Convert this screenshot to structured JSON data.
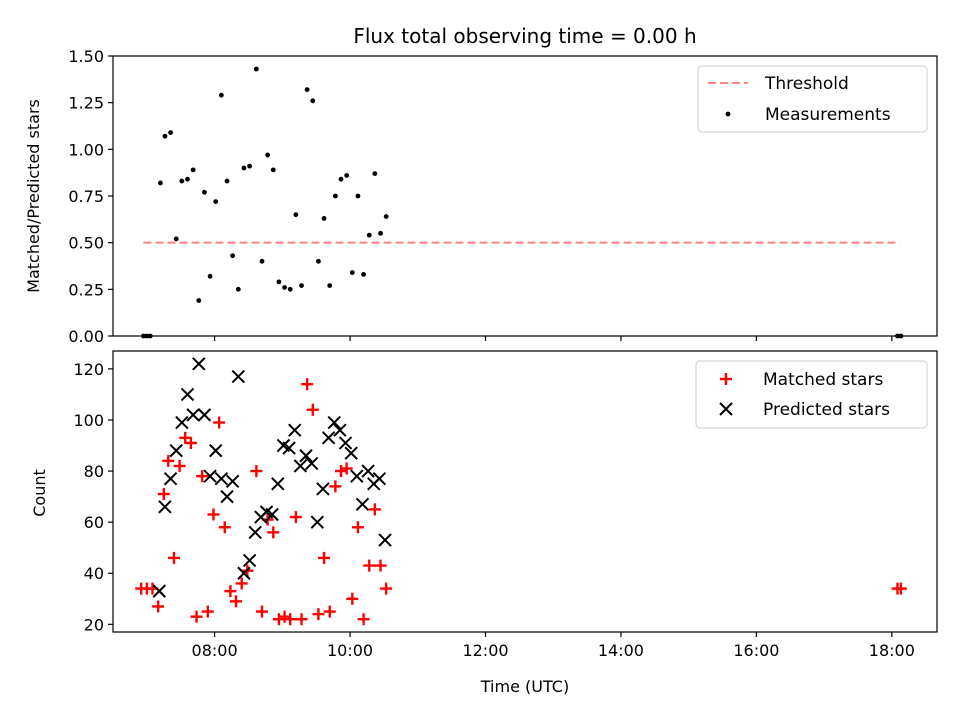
{
  "chart_data": [
    {
      "type": "scatter",
      "title": "Flux total observing time = 0.00 h",
      "xlabel": "",
      "ylabel": "Matched/Predicted stars",
      "xlim": [
        "06:30",
        "18:40"
      ],
      "ylim": [
        0,
        1.5
      ],
      "yticks": [
        "0.00",
        "0.25",
        "0.50",
        "0.75",
        "1.00",
        "1.25",
        "1.50"
      ],
      "grid": false,
      "legend_position": "top-right",
      "threshold": {
        "name": "Threshold",
        "y": 0.5,
        "x_start": "06:57",
        "x_end": "18:07",
        "color": "#ff8080"
      },
      "series": [
        {
          "name": "Measurements",
          "color": "#000000",
          "marker": "dot",
          "points": [
            [
              "06:57",
              0.0
            ],
            [
              "07:00",
              0.0
            ],
            [
              "07:03",
              0.0
            ],
            [
              "07:12",
              0.82
            ],
            [
              "07:16",
              1.07
            ],
            [
              "07:21",
              1.09
            ],
            [
              "07:26",
              0.52
            ],
            [
              "07:31",
              0.83
            ],
            [
              "07:36",
              0.84
            ],
            [
              "07:41",
              0.89
            ],
            [
              "07:46",
              0.19
            ],
            [
              "07:51",
              0.77
            ],
            [
              "07:56",
              0.32
            ],
            [
              "08:01",
              0.72
            ],
            [
              "08:06",
              1.29
            ],
            [
              "08:11",
              0.83
            ],
            [
              "08:16",
              0.43
            ],
            [
              "08:21",
              0.25
            ],
            [
              "08:26",
              0.9
            ],
            [
              "08:31",
              0.91
            ],
            [
              "08:37",
              1.43
            ],
            [
              "08:42",
              0.4
            ],
            [
              "08:47",
              0.97
            ],
            [
              "08:52",
              0.89
            ],
            [
              "08:57",
              0.29
            ],
            [
              "09:02",
              0.26
            ],
            [
              "09:07",
              0.25
            ],
            [
              "09:12",
              0.65
            ],
            [
              "09:17",
              0.27
            ],
            [
              "09:22",
              1.32
            ],
            [
              "09:27",
              1.26
            ],
            [
              "09:32",
              0.4
            ],
            [
              "09:37",
              0.63
            ],
            [
              "09:42",
              0.27
            ],
            [
              "09:47",
              0.75
            ],
            [
              "09:52",
              0.84
            ],
            [
              "09:57",
              0.86
            ],
            [
              "10:02",
              0.34
            ],
            [
              "10:07",
              0.75
            ],
            [
              "10:12",
              0.33
            ],
            [
              "10:17",
              0.54
            ],
            [
              "10:22",
              0.87
            ],
            [
              "10:27",
              0.55
            ],
            [
              "10:32",
              0.64
            ],
            [
              "18:05",
              0.0
            ],
            [
              "18:08",
              0.0
            ]
          ]
        }
      ]
    },
    {
      "type": "scatter",
      "title": "",
      "xlabel": "Time (UTC)",
      "ylabel": "Count",
      "xlim": [
        "06:30",
        "18:40"
      ],
      "ylim": [
        17,
        127
      ],
      "yticks": [
        "20",
        "40",
        "60",
        "80",
        "100",
        "120"
      ],
      "xticks": [
        "08:00",
        "10:00",
        "12:00",
        "14:00",
        "16:00",
        "18:00"
      ],
      "grid": false,
      "legend_position": "top-right",
      "series": [
        {
          "name": "Matched stars",
          "color": "#ff0000",
          "marker": "plus",
          "points": [
            [
              "06:55",
              34
            ],
            [
              "07:00",
              34
            ],
            [
              "07:05",
              34
            ],
            [
              "07:10",
              27
            ],
            [
              "07:15",
              71
            ],
            [
              "07:19",
              84
            ],
            [
              "07:24",
              46
            ],
            [
              "07:29",
              82
            ],
            [
              "07:34",
              93
            ],
            [
              "07:39",
              91
            ],
            [
              "07:44",
              23
            ],
            [
              "07:49",
              78
            ],
            [
              "07:54",
              25
            ],
            [
              "07:59",
              63
            ],
            [
              "08:04",
              99
            ],
            [
              "08:09",
              58
            ],
            [
              "08:14",
              33
            ],
            [
              "08:19",
              29
            ],
            [
              "08:24",
              36
            ],
            [
              "08:29",
              41
            ],
            [
              "08:37",
              80
            ],
            [
              "08:42",
              25
            ],
            [
              "08:47",
              61
            ],
            [
              "08:52",
              56
            ],
            [
              "08:57",
              22
            ],
            [
              "09:02",
              23
            ],
            [
              "09:07",
              22
            ],
            [
              "09:12",
              62
            ],
            [
              "09:17",
              22
            ],
            [
              "09:22",
              114
            ],
            [
              "09:27",
              104
            ],
            [
              "09:32",
              24
            ],
            [
              "09:37",
              46
            ],
            [
              "09:42",
              25
            ],
            [
              "09:47",
              74
            ],
            [
              "09:52",
              80
            ],
            [
              "09:57",
              81
            ],
            [
              "10:02",
              30
            ],
            [
              "10:07",
              58
            ],
            [
              "10:12",
              22
            ],
            [
              "10:17",
              43
            ],
            [
              "10:22",
              65
            ],
            [
              "10:27",
              43
            ],
            [
              "10:32",
              34
            ],
            [
              "18:05",
              34
            ],
            [
              "18:08",
              34
            ]
          ]
        },
        {
          "name": "Predicted stars",
          "color": "#000000",
          "marker": "x",
          "points": [
            [
              "07:11",
              33
            ],
            [
              "07:16",
              66
            ],
            [
              "07:21",
              77
            ],
            [
              "07:26",
              88
            ],
            [
              "07:31",
              99
            ],
            [
              "07:36",
              110
            ],
            [
              "07:41",
              102
            ],
            [
              "07:46",
              122
            ],
            [
              "07:51",
              102
            ],
            [
              "07:56",
              78
            ],
            [
              "08:01",
              88
            ],
            [
              "08:06",
              77
            ],
            [
              "08:11",
              70
            ],
            [
              "08:16",
              76
            ],
            [
              "08:21",
              117
            ],
            [
              "08:26",
              40
            ],
            [
              "08:31",
              45
            ],
            [
              "08:36",
              56
            ],
            [
              "08:41",
              62
            ],
            [
              "08:46",
              64
            ],
            [
              "08:51",
              63
            ],
            [
              "08:56",
              75
            ],
            [
              "09:01",
              90
            ],
            [
              "09:06",
              89
            ],
            [
              "09:11",
              96
            ],
            [
              "09:16",
              82
            ],
            [
              "09:21",
              86
            ],
            [
              "09:26",
              83
            ],
            [
              "09:31",
              60
            ],
            [
              "09:36",
              73
            ],
            [
              "09:41",
              93
            ],
            [
              "09:46",
              99
            ],
            [
              "09:51",
              96
            ],
            [
              "09:56",
              91
            ],
            [
              "10:01",
              87
            ],
            [
              "10:06",
              78
            ],
            [
              "10:11",
              67
            ],
            [
              "10:16",
              80
            ],
            [
              "10:21",
              75
            ],
            [
              "10:26",
              77
            ],
            [
              "10:31",
              53
            ]
          ]
        }
      ]
    }
  ]
}
